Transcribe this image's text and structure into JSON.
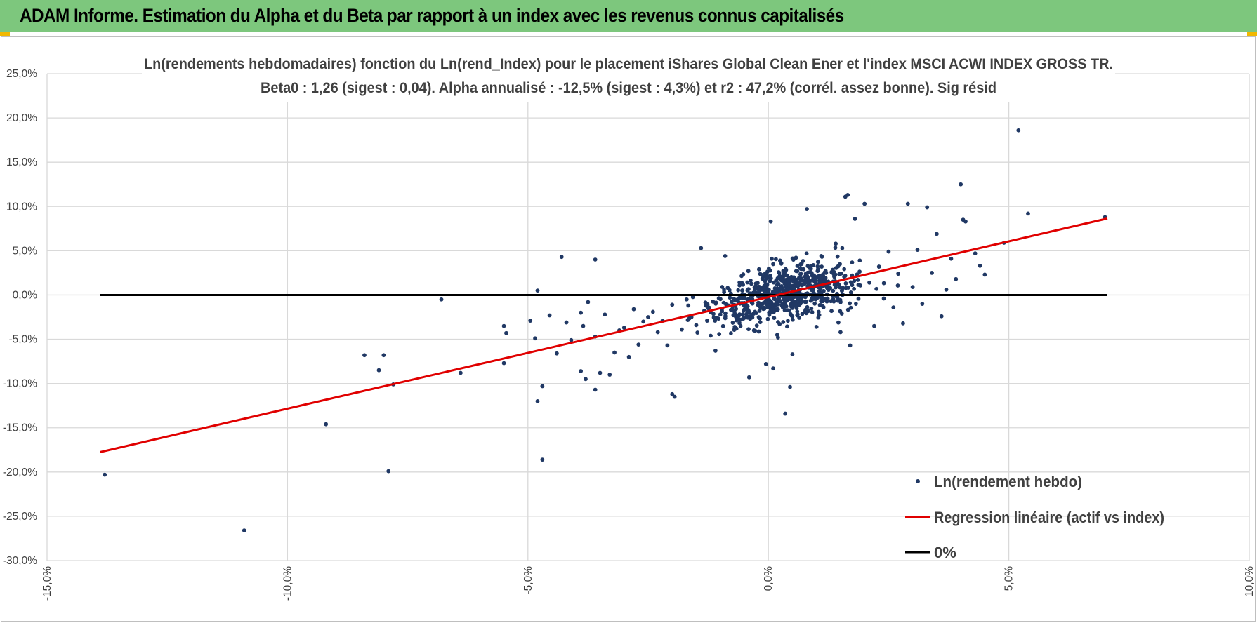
{
  "banner_title": "ADAM Informe. Estimation du Alpha et du Beta par rapport à un index avec les revenus connus capitalisés",
  "colors": {
    "banner": "#7dc77d",
    "points": "#203864",
    "regression": "#e00000",
    "zero_line": "#000000",
    "grid": "#d9d9d9"
  },
  "chart_data": {
    "type": "scatter",
    "title": "Ln(rendements hebdomadaires) fonction du Ln(rend_Index) pour le placement iShares Global Clean Ener et l'index MSCI ACWI INDEX GROSS TR.",
    "subtitle": "Beta0 : 1,26 (sigest : 0,04).  Alpha annualisé : -12,5% (sigest : 4,3%) et r2 : 47,2% (corrél. assez bonne). Sig résid",
    "xlim": [
      -15,
      10
    ],
    "ylim": [
      -30,
      25
    ],
    "x_ticks": [
      -15,
      -10,
      -5,
      0,
      5,
      10
    ],
    "x_tick_labels": [
      "-15,0%",
      "-10,0%",
      "-5,0%",
      "0,0%",
      "5,0%",
      "10,0%"
    ],
    "y_ticks": [
      25,
      20,
      15,
      10,
      5,
      0,
      -5,
      -10,
      -15,
      -20,
      -25,
      -30
    ],
    "y_tick_labels": [
      "25,0%",
      "20,0%",
      "15,0%",
      "10,0%",
      "5,0%",
      "0,0%",
      "-5,0%",
      "-10,0%",
      "-15,0%",
      "-20,0%",
      "-25,0%",
      "-30,0%"
    ],
    "legend_position": "bottom-right",
    "series": [
      {
        "name": "Ln(rendement hebdo)",
        "kind": "scatter",
        "color": "#203864",
        "points": [
          [
            -13.8,
            -20.3
          ],
          [
            -10.9,
            -26.6
          ],
          [
            -9.2,
            -14.6
          ],
          [
            -8.4,
            -6.8
          ],
          [
            -8.1,
            -8.5
          ],
          [
            -8.0,
            -6.8
          ],
          [
            -7.9,
            -19.9
          ],
          [
            -7.8,
            -10.1
          ],
          [
            -6.8,
            -0.5
          ],
          [
            -6.4,
            -8.8
          ],
          [
            -5.5,
            -3.5
          ],
          [
            -5.45,
            -4.3
          ],
          [
            -5.5,
            -7.7
          ],
          [
            -4.95,
            -2.9
          ],
          [
            -4.85,
            -4.9
          ],
          [
            -4.8,
            0.5
          ],
          [
            -4.8,
            -12.0
          ],
          [
            -4.7,
            -10.3
          ],
          [
            -4.7,
            -18.6
          ],
          [
            -4.55,
            -2.3
          ],
          [
            -4.4,
            -6.6
          ],
          [
            -4.3,
            4.3
          ],
          [
            -4.2,
            -3.1
          ],
          [
            -4.1,
            -5.1
          ],
          [
            -3.9,
            -8.6
          ],
          [
            -3.9,
            -2.0
          ],
          [
            -3.85,
            -3.5
          ],
          [
            -3.8,
            -9.5
          ],
          [
            -3.75,
            -0.8
          ],
          [
            -3.6,
            -4.7
          ],
          [
            -3.6,
            -10.7
          ],
          [
            -3.6,
            4.0
          ],
          [
            -3.5,
            -8.8
          ],
          [
            -3.4,
            -2.2
          ],
          [
            -3.3,
            -9.0
          ],
          [
            -3.2,
            -6.5
          ],
          [
            -3.1,
            -4.0
          ],
          [
            -3.0,
            -3.7
          ],
          [
            -2.9,
            -7.0
          ],
          [
            -2.8,
            -1.6
          ],
          [
            -2.7,
            -5.6
          ],
          [
            -2.6,
            -3.0
          ],
          [
            -2.5,
            -2.5
          ],
          [
            -2.4,
            -1.9
          ],
          [
            -2.3,
            -4.2
          ],
          [
            -2.2,
            -2.9
          ],
          [
            -2.1,
            -5.7
          ],
          [
            -2.0,
            -11.2
          ],
          [
            -1.95,
            -11.5
          ],
          [
            -2.0,
            -1.1
          ],
          [
            -1.8,
            -3.9
          ],
          [
            -1.7,
            -0.5
          ],
          [
            -1.6,
            -2.5
          ],
          [
            -1.5,
            -3.4
          ],
          [
            -1.4,
            5.3
          ],
          [
            -1.3,
            -1.2
          ],
          [
            -1.2,
            -4.6
          ],
          [
            -1.1,
            -6.3
          ],
          [
            -1.0,
            -2.2
          ],
          [
            -0.9,
            4.4
          ],
          [
            -0.8,
            -0.3
          ],
          [
            -0.7,
            -3.6
          ],
          [
            -0.6,
            1.4
          ],
          [
            -0.5,
            -1.2
          ],
          [
            -0.4,
            -9.3
          ],
          [
            -0.3,
            -4.0
          ],
          [
            -0.2,
            -2.5
          ],
          [
            -0.1,
            0.6
          ],
          [
            -0.05,
            -7.8
          ],
          [
            0.0,
            -1.1
          ],
          [
            0.05,
            8.3
          ],
          [
            0.1,
            -8.3
          ],
          [
            0.2,
            -4.8
          ],
          [
            0.3,
            2.1
          ],
          [
            0.35,
            -13.4
          ],
          [
            0.45,
            -10.4
          ],
          [
            0.5,
            -6.7
          ],
          [
            0.6,
            -2.3
          ],
          [
            0.7,
            1.1
          ],
          [
            0.8,
            9.7
          ],
          [
            0.9,
            -0.4
          ],
          [
            1.0,
            -3.6
          ],
          [
            1.1,
            4.4
          ],
          [
            1.2,
            2.5
          ],
          [
            1.3,
            -0.7
          ],
          [
            1.4,
            5.8
          ],
          [
            1.5,
            -4.2
          ],
          [
            1.6,
            11.1
          ],
          [
            1.65,
            11.3
          ],
          [
            1.7,
            -5.7
          ],
          [
            1.8,
            8.6
          ],
          [
            1.9,
            3.9
          ],
          [
            2.0,
            10.3
          ],
          [
            2.1,
            1.4
          ],
          [
            2.2,
            -3.5
          ],
          [
            2.3,
            3.2
          ],
          [
            2.4,
            -0.4
          ],
          [
            2.5,
            4.9
          ],
          [
            2.6,
            -1.4
          ],
          [
            2.7,
            2.4
          ],
          [
            2.8,
            -3.2
          ],
          [
            2.9,
            10.3
          ],
          [
            3.0,
            0.9
          ],
          [
            3.1,
            5.1
          ],
          [
            3.2,
            -1.0
          ],
          [
            3.3,
            9.9
          ],
          [
            3.4,
            2.5
          ],
          [
            3.5,
            6.9
          ],
          [
            3.6,
            -2.4
          ],
          [
            3.7,
            0.6
          ],
          [
            3.8,
            4.1
          ],
          [
            3.9,
            1.8
          ],
          [
            4.0,
            12.5
          ],
          [
            4.05,
            8.5
          ],
          [
            4.1,
            8.3
          ],
          [
            4.3,
            4.7
          ],
          [
            4.4,
            3.3
          ],
          [
            4.5,
            2.3
          ],
          [
            4.9,
            5.9
          ],
          [
            5.2,
            18.6
          ],
          [
            5.4,
            9.2
          ],
          [
            7.0,
            8.8
          ]
        ]
      },
      {
        "name": "Regression linéaire (actif vs index)",
        "kind": "line",
        "color": "#e00000",
        "intercept": -0.24,
        "slope": 1.26,
        "x_range": [
          -13.9,
          7.05
        ]
      },
      {
        "name": "0%",
        "kind": "line",
        "color": "#000000",
        "constant_y": 0,
        "x_range": [
          -13.9,
          7.05
        ]
      }
    ],
    "cluster_points_note": "Dense central cloud of weekly returns around x in [-2.5, 3.5], y roughly 1.26*x ± 3 (generated deterministically by script)."
  }
}
